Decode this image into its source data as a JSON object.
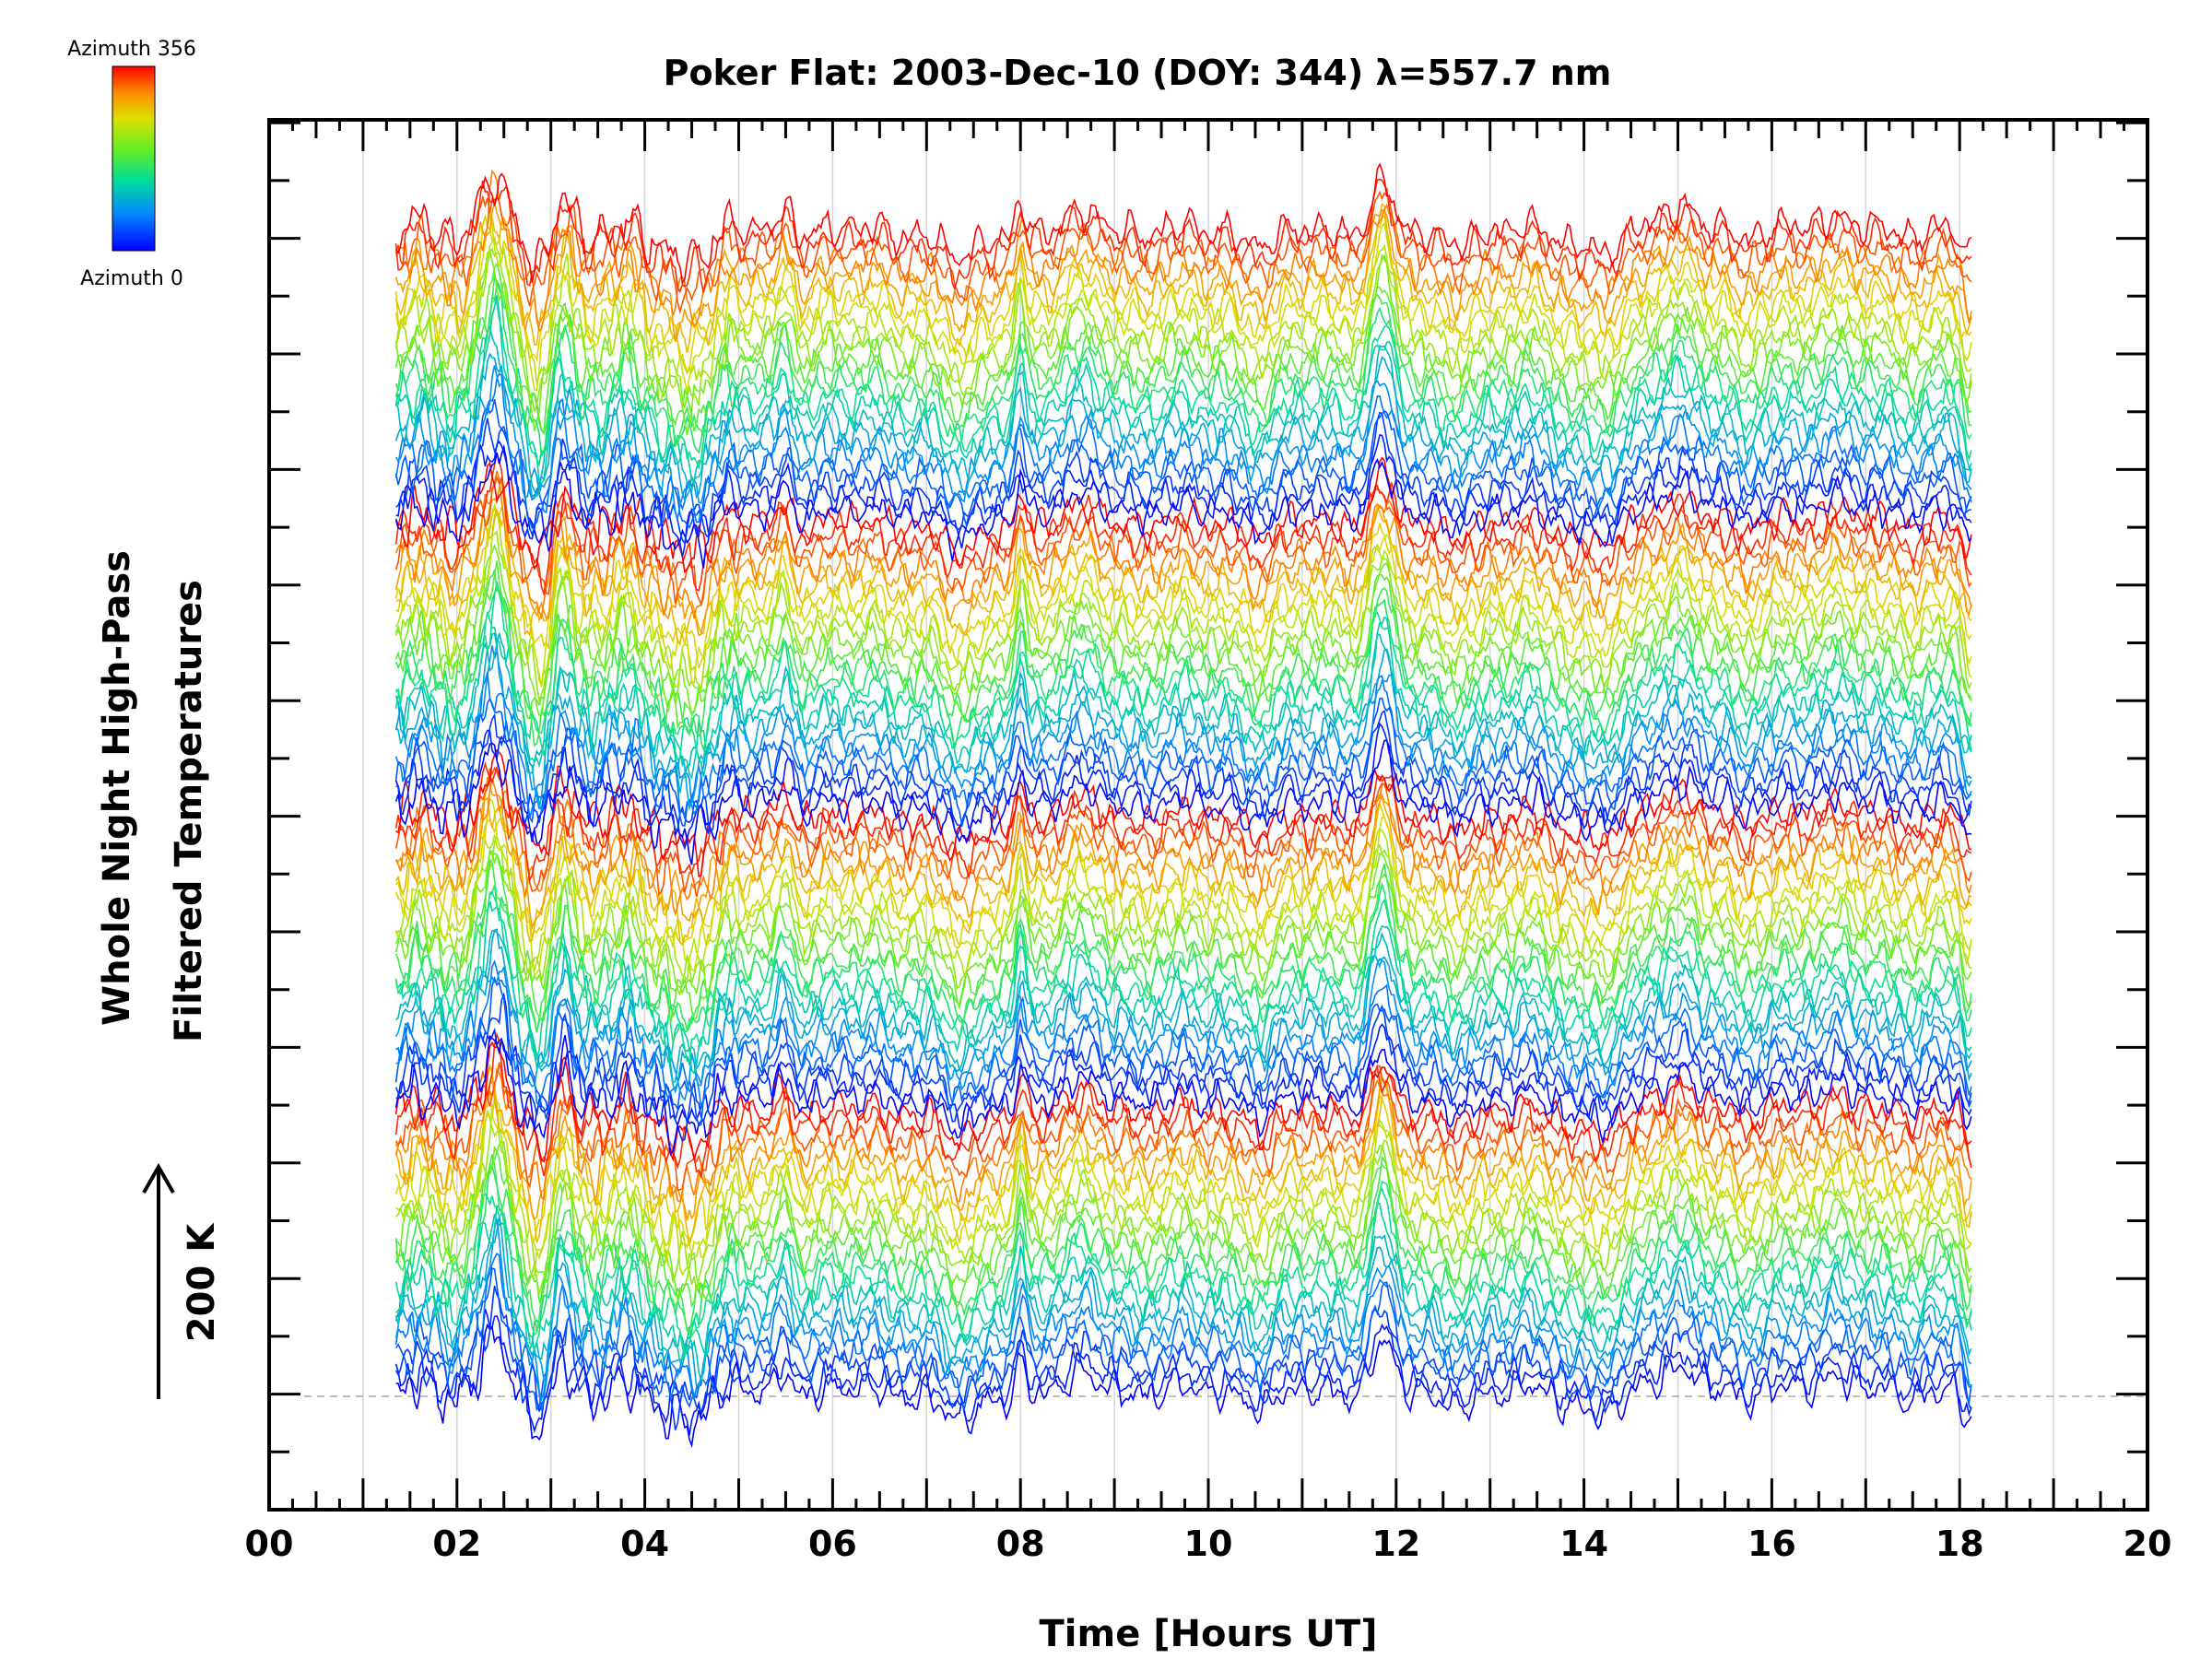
{
  "chart_data": {
    "type": "line",
    "title": "Poker Flat: 2003-Dec-10 (DOY: 344) λ=557.7 nm",
    "xlabel": "Time [Hours UT]",
    "ylabel_line1": "Whole Night High-Pass",
    "ylabel_line2": "Filtered Temperatures",
    "scale_bar_label": "200 K",
    "xlim": [
      0,
      20
    ],
    "x_tick_labels": [
      "00",
      "02",
      "04",
      "06",
      "08",
      "10",
      "12",
      "14",
      "16",
      "18",
      "20"
    ],
    "x_data_range": [
      1.35,
      18.15
    ],
    "grid": "vertical",
    "legend": {
      "type": "colorbar",
      "placement": "top-left",
      "top_label": "Azimuth 356",
      "bottom_label": "Azimuth 0",
      "azimuth_min": 0,
      "azimuth_max": 356
    },
    "series_count": 96,
    "colors": {
      "low": "#0000ff",
      "mid": "#00ff00",
      "high": "#ff0000",
      "baseline": "#aaaaaa"
    }
  }
}
